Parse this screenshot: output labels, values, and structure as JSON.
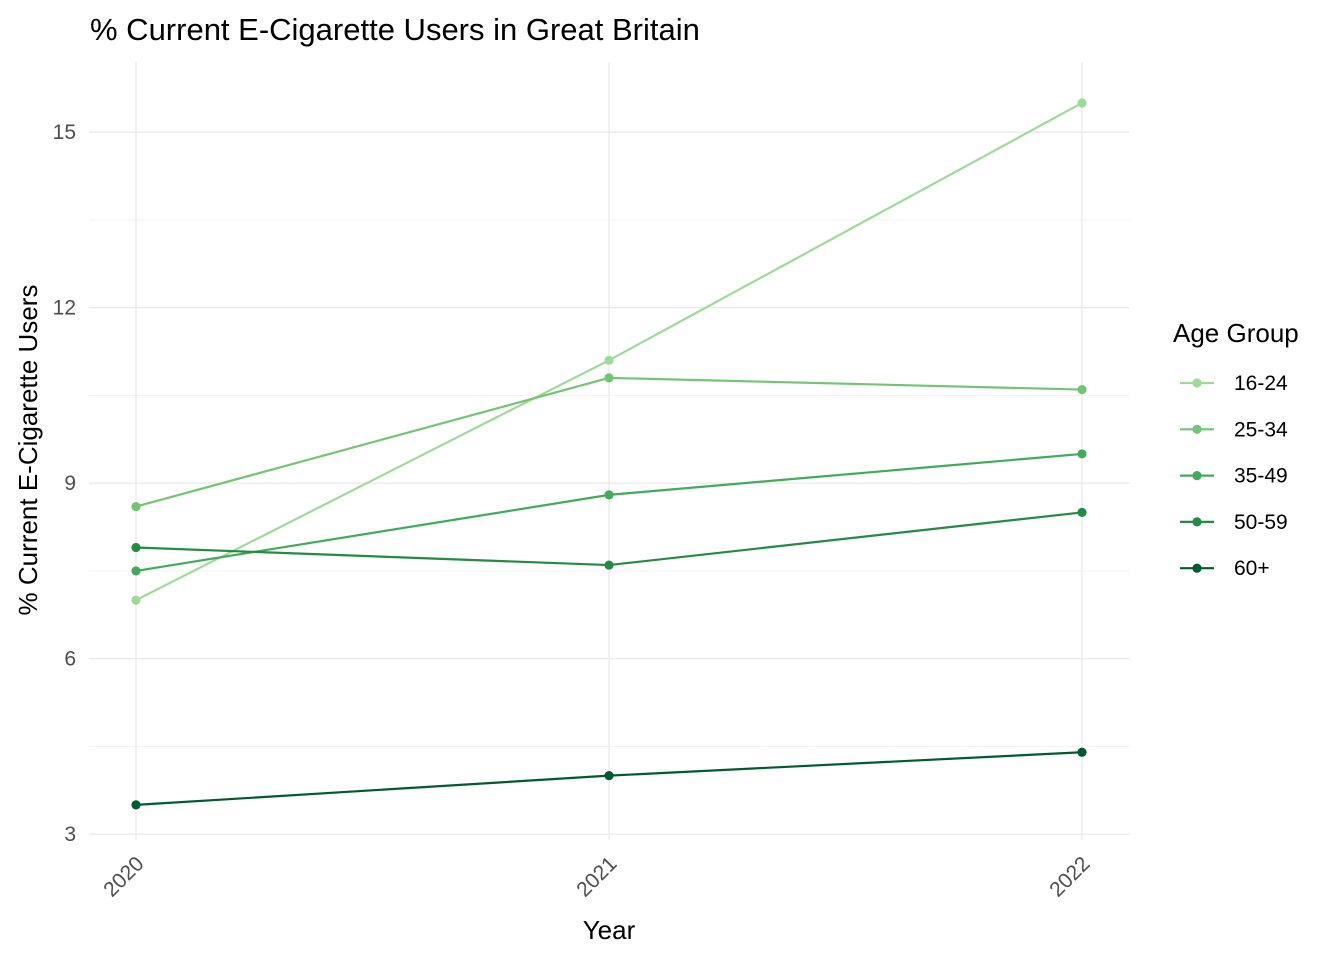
{
  "chart_data": {
    "type": "line",
    "title": "% Current E-Cigarette Users in Great Britain",
    "xlabel": "Year",
    "ylabel": "% Current E-Cigarette Users",
    "x": [
      "2020",
      "2021",
      "2022"
    ],
    "ylim": [
      2.9,
      16.2
    ],
    "y_ticks": [
      3,
      6,
      9,
      12,
      15
    ],
    "grid": true,
    "legend": {
      "title": "Age Group",
      "position": "right"
    },
    "series": [
      {
        "name": "16-24",
        "color": "#a1d99b",
        "values": [
          7.0,
          11.1,
          15.5
        ]
      },
      {
        "name": "25-34",
        "color": "#74c476",
        "values": [
          8.6,
          10.8,
          10.6
        ]
      },
      {
        "name": "35-49",
        "color": "#41ab5d",
        "values": [
          7.5,
          8.8,
          9.5
        ]
      },
      {
        "name": "50-59",
        "color": "#238b45",
        "values": [
          7.9,
          7.6,
          8.5
        ]
      },
      {
        "name": "60+",
        "color": "#005a32",
        "values": [
          3.5,
          4.0,
          4.4
        ]
      }
    ]
  }
}
